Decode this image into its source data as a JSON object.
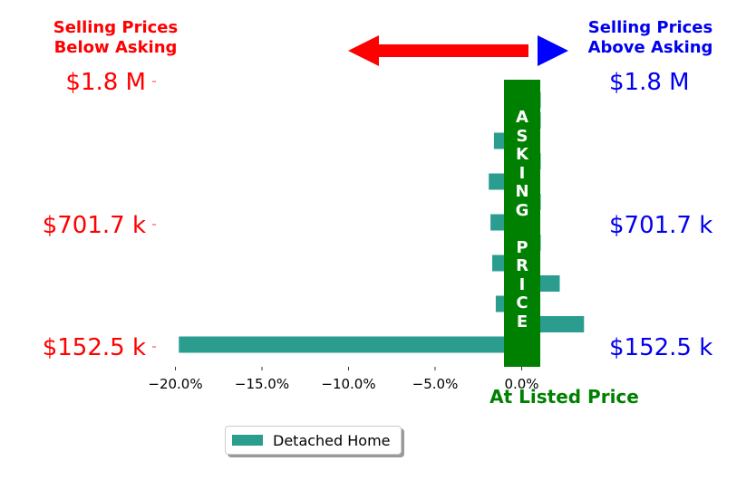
{
  "chart_data": {
    "type": "bar",
    "orientation": "horizontal",
    "series": [
      {
        "name": "Detached Home",
        "color": "#2a9d8f",
        "values": [
          -19.8,
          3.6,
          -1.5,
          2.2,
          -1.7,
          1.1,
          -1.8,
          1.1,
          -1.9,
          1.1,
          -1.6,
          1.1,
          1.1
        ]
      }
    ],
    "y_tick_labels": [
      "$1.8 M",
      "$701.7 k",
      "$152.5 k"
    ],
    "x_ticks": [
      -20,
      -15,
      -10,
      -5,
      0
    ],
    "x_tick_labels": [
      "−20.0%",
      "−15.0%",
      "−10.0%",
      "−5.0%",
      "0.0%"
    ],
    "xlim": [
      -21.0,
      3.8
    ],
    "xlabel": "At Listed Price",
    "left_header": "Selling Prices\nBelow Asking",
    "right_header": "Selling Prices\nAbove Asking",
    "asking_band_text": [
      "A",
      "S",
      "K",
      "I",
      "N",
      "G",
      "",
      "P",
      "R",
      "I",
      "C",
      "E"
    ],
    "legend_location": "lower-center",
    "colors": {
      "below": "#ff0000",
      "above": "#0000ee",
      "asking": "#008000",
      "bar": "#2a9d8f"
    }
  }
}
